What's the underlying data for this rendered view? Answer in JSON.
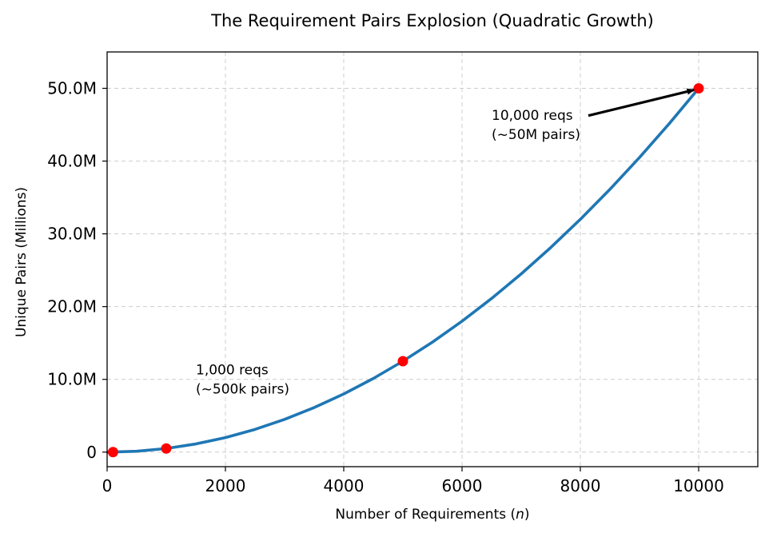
{
  "chart_data": {
    "type": "line",
    "title": "The Requirement Pairs Explosion (Quadratic Growth)",
    "xlabel": "Number of Requirements (n)",
    "xlabel_prefix": "Number of Requirements (",
    "xlabel_var": "n",
    "xlabel_suffix": ")",
    "ylabel": "Unique Pairs (Millions)",
    "xlim": [
      0,
      11000
    ],
    "ylim": [
      -2000000,
      55000000
    ],
    "grid": true,
    "x_ticks": [
      0,
      2000,
      4000,
      6000,
      8000,
      10000
    ],
    "x_tick_labels": [
      "0",
      "2000",
      "4000",
      "6000",
      "8000",
      "10000"
    ],
    "y_ticks": [
      0,
      10000000,
      20000000,
      30000000,
      40000000,
      50000000
    ],
    "y_tick_labels": [
      "0",
      "10.0M",
      "20.0M",
      "30.0M",
      "40.0M",
      "50.0M"
    ],
    "series": [
      {
        "kind": "curve",
        "formula": "n*(n-1)/2",
        "color": "#1f77b4",
        "x": [
          10,
          500,
          1000,
          1500,
          2000,
          2500,
          3000,
          3500,
          4000,
          4500,
          5000,
          5500,
          6000,
          6500,
          7000,
          7500,
          8000,
          8500,
          9000,
          9500,
          10000
        ],
        "y": [
          45,
          124750,
          499500,
          1124250,
          1999000,
          3123750,
          4498500,
          6123250,
          7998000,
          10122750,
          12497500,
          15122250,
          17997000,
          21121750,
          24496500,
          28121250,
          31996000,
          36120750,
          40495500,
          45120250,
          49995000
        ]
      },
      {
        "kind": "markers",
        "color": "#ff0000",
        "x": [
          100,
          1000,
          5000,
          10000
        ],
        "y": [
          4950,
          499500,
          12497500,
          49995000
        ]
      }
    ],
    "annotations": [
      {
        "lines": [
          "1,000 reqs",
          "(~500k pairs)"
        ],
        "text_x": 1500,
        "text_y": 10000000,
        "arrow": false
      },
      {
        "lines": [
          "10,000 reqs",
          "(~50M pairs)"
        ],
        "text_x": 6500,
        "text_y": 45000000,
        "arrow": true,
        "arrow_to_x": 10000,
        "arrow_to_y": 49995000,
        "arrow_color": "#000000"
      }
    ]
  }
}
